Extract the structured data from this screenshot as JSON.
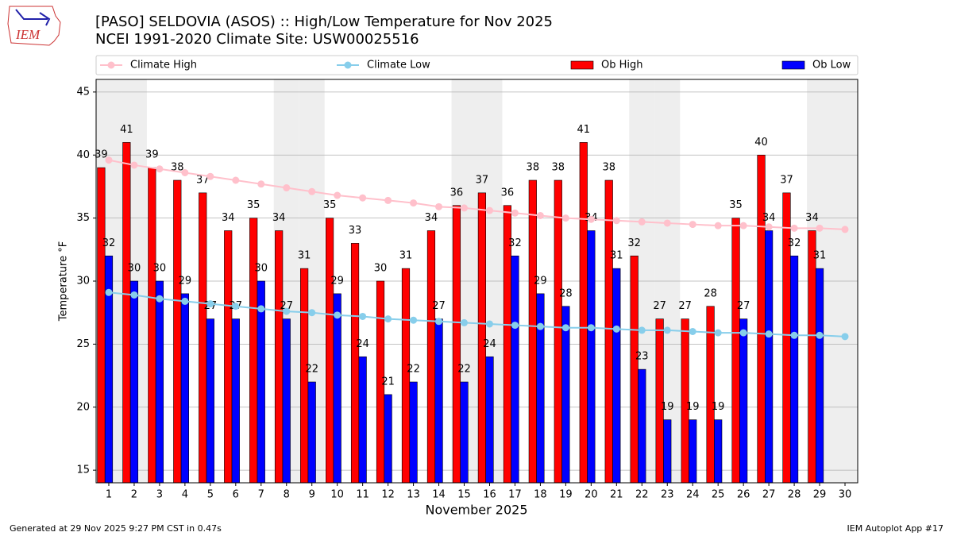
{
  "logo_text": "IEM",
  "footer_left": "Generated at 29 Nov 2025 9:27 PM CST in 0.47s",
  "footer_right": "IEM Autoplot App #17",
  "chart_data": {
    "type": "bar",
    "title": "[PASO] SELDOVIA (ASOS) :: High/Low Temperature for Nov 2025",
    "subtitle": "NCEI 1991-2020 Climate Site: USW00025516",
    "x_label": "November 2025",
    "y_label": "Temperature °F",
    "x": [
      1,
      2,
      3,
      4,
      5,
      6,
      7,
      8,
      9,
      10,
      11,
      12,
      13,
      14,
      15,
      16,
      17,
      18,
      19,
      20,
      21,
      22,
      23,
      24,
      25,
      26,
      27,
      28,
      29,
      30
    ],
    "xlim": [
      0.5,
      30.5
    ],
    "ylim": [
      14,
      46
    ],
    "yticks": [
      15,
      20,
      25,
      30,
      35,
      40,
      45
    ],
    "grid": true,
    "legend": "top",
    "shaded_days": [
      1,
      2,
      8,
      9,
      15,
      16,
      22,
      23,
      29,
      30
    ],
    "series": [
      {
        "name": "Climate High",
        "type": "line",
        "color": "#ffc0cb",
        "values": [
          39.6,
          39.2,
          38.9,
          38.6,
          38.3,
          38.0,
          37.7,
          37.4,
          37.1,
          36.8,
          36.6,
          36.4,
          36.2,
          35.9,
          35.8,
          35.6,
          35.4,
          35.2,
          35.0,
          34.9,
          34.8,
          34.7,
          34.6,
          34.5,
          34.4,
          34.4,
          34.3,
          34.2,
          34.2,
          34.1
        ]
      },
      {
        "name": "Climate Low",
        "type": "line",
        "color": "#87ceeb",
        "values": [
          29.1,
          28.9,
          28.6,
          28.4,
          28.2,
          28.0,
          27.8,
          27.6,
          27.5,
          27.3,
          27.2,
          27.0,
          26.9,
          26.8,
          26.7,
          26.6,
          26.5,
          26.4,
          26.3,
          26.3,
          26.2,
          26.1,
          26.1,
          26.0,
          25.9,
          25.9,
          25.8,
          25.7,
          25.7,
          25.6
        ]
      },
      {
        "name": "Ob High",
        "type": "bar",
        "color": "#ff0000",
        "values": [
          39,
          41,
          39,
          38,
          37,
          34,
          35,
          34,
          31,
          35,
          33,
          30,
          31,
          34,
          36,
          37,
          36,
          38,
          38,
          41,
          38,
          32,
          27,
          27,
          28,
          35,
          40,
          37,
          34,
          null
        ]
      },
      {
        "name": "Ob Low",
        "type": "bar",
        "color": "#0000ff",
        "values": [
          32,
          30,
          30,
          29,
          27,
          27,
          30,
          27,
          22,
          29,
          24,
          21,
          22,
          27,
          22,
          24,
          32,
          29,
          28,
          34,
          31,
          23,
          19,
          19,
          19,
          27,
          34,
          32,
          31,
          null
        ]
      }
    ]
  }
}
